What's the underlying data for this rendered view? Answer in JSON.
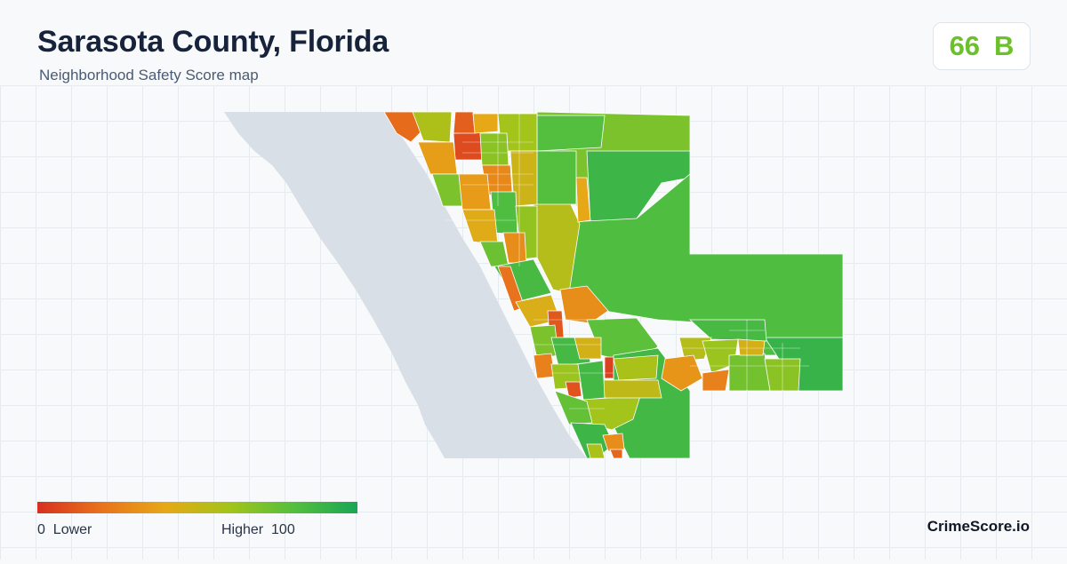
{
  "header": {
    "title": "Sarasota County, Florida",
    "subtitle": "Neighborhood Safety Score map"
  },
  "score": {
    "value": "66",
    "grade": "B",
    "color": "#6cc12a"
  },
  "legend": {
    "min_label": "0",
    "min_word": "Lower",
    "max_word": "Higher",
    "max_label": "100",
    "colors": [
      "#d7301f",
      "#e8731c",
      "#e6a817",
      "#a3c41a",
      "#54bf3e",
      "#1aa655"
    ]
  },
  "brand": "CrimeScore.io",
  "map": {
    "water_color": "#d8dfe6",
    "region_border_color": "#ffffff"
  }
}
